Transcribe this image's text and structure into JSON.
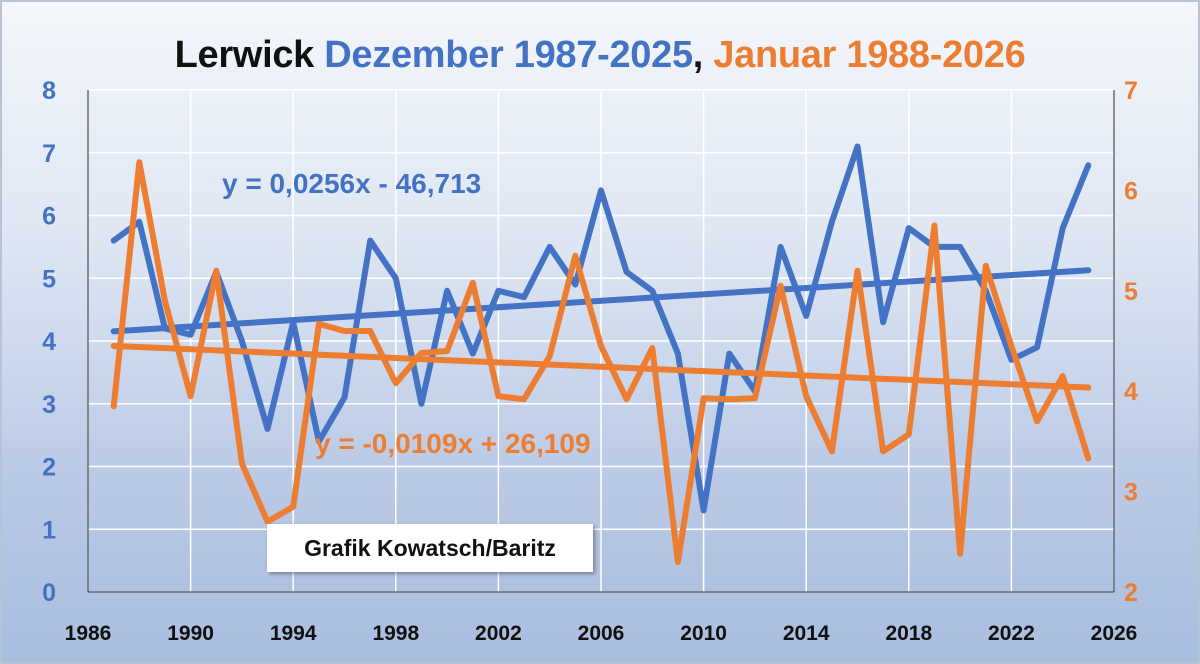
{
  "title": {
    "city": "Lerwick",
    "december": "Dezember 1987-2025",
    "separator": ",",
    "january": "Januar 1988-2026"
  },
  "watermark": "Grafik Kowatsch/Baritz",
  "colors": {
    "december": "#4472c4",
    "january": "#ed7d31",
    "grid": "#ffffff",
    "axis": "#222222"
  },
  "chart_data": {
    "type": "line",
    "x_axis": {
      "min": 1986,
      "max": 2026,
      "step": 4,
      "ticks": [
        1986,
        1990,
        1994,
        1998,
        2002,
        2006,
        2010,
        2014,
        2018,
        2022,
        2026
      ]
    },
    "y_left": {
      "min": 0,
      "max": 8,
      "ticks": [
        0,
        1,
        2,
        3,
        4,
        5,
        6,
        7,
        8
      ]
    },
    "y_right": {
      "min": 2,
      "max": 7,
      "ticks": [
        2,
        3,
        4,
        5,
        6,
        7
      ]
    },
    "grid": true,
    "series": [
      {
        "name": "Dezember 1987-2025",
        "axis": "left",
        "x": [
          1987,
          1988,
          1989,
          1990,
          1991,
          1992,
          1993,
          1994,
          1995,
          1996,
          1997,
          1998,
          1999,
          2000,
          2001,
          2002,
          2003,
          2004,
          2005,
          2006,
          2007,
          2008,
          2009,
          2010,
          2011,
          2012,
          2013,
          2014,
          2015,
          2016,
          2017,
          2018,
          2019,
          2020,
          2021,
          2022,
          2023,
          2024,
          2025
        ],
        "y": [
          5.6,
          5.9,
          4.2,
          4.1,
          5.1,
          4.0,
          2.6,
          4.3,
          2.4,
          3.1,
          5.6,
          5.0,
          3.0,
          4.8,
          3.8,
          4.8,
          4.7,
          5.5,
          4.9,
          6.4,
          5.1,
          4.8,
          3.8,
          1.3,
          3.8,
          3.2,
          5.5,
          4.4,
          5.9,
          7.1,
          4.3,
          5.8,
          5.5,
          5.5,
          4.8,
          3.7,
          3.9,
          5.8,
          6.8
        ],
        "trendline": {
          "equation": "y = 0,0256x - 46,713",
          "slope": 0.0256,
          "intercept": -46.713
        }
      },
      {
        "name": "Januar 1988-2026",
        "axis": "right",
        "x": [
          1987,
          1988,
          1989,
          1990,
          1991,
          1992,
          1993,
          1994,
          1995,
          1996,
          1997,
          1998,
          1999,
          2000,
          2001,
          2002,
          2003,
          2004,
          2005,
          2006,
          2007,
          2008,
          2009,
          2010,
          2011,
          2012,
          2013,
          2014,
          2015,
          2016,
          2017,
          2018,
          2019,
          2020,
          2021,
          2022,
          2023,
          2024,
          2025
        ],
        "y": [
          3.85,
          6.28,
          4.9,
          3.95,
          5.2,
          3.28,
          2.7,
          2.85,
          4.67,
          4.6,
          4.6,
          4.08,
          4.38,
          4.4,
          5.08,
          3.95,
          3.92,
          4.35,
          5.35,
          4.45,
          3.92,
          4.43,
          2.3,
          3.93,
          3.92,
          3.93,
          5.05,
          3.95,
          3.4,
          5.2,
          3.4,
          3.57,
          5.65,
          2.38,
          5.25,
          4.45,
          3.7,
          4.15,
          3.33
        ],
        "trendline": {
          "equation": "y = -0,0109x + 26,109",
          "slope": -0.0109,
          "intercept": 26.109
        }
      }
    ]
  }
}
